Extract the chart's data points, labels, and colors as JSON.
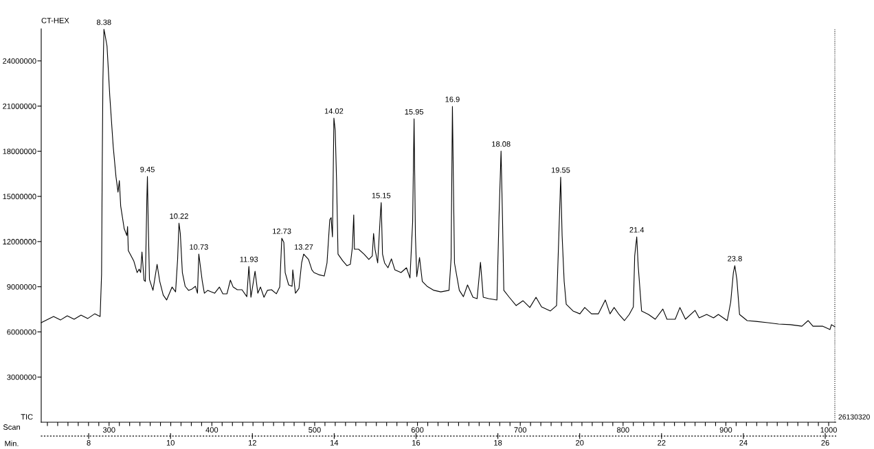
{
  "chart_data": {
    "type": "line",
    "title": "CT-HEX",
    "xlabel": "Scan",
    "x2label": "Min.",
    "ylabel": "TIC",
    "xlim": [
      234,
      1007
    ],
    "x2lim": [
      6.84,
      26.26
    ],
    "ylim": [
      0,
      26130320
    ],
    "xticks": [
      {
        "value": 240,
        "label": null
      },
      {
        "value": 250,
        "label": null
      },
      {
        "value": 260,
        "label": null
      },
      {
        "value": 270,
        "label": null
      },
      {
        "value": 280,
        "label": null
      },
      {
        "value": 290,
        "label": null
      },
      300,
      {
        "value": 310,
        "label": null
      },
      {
        "value": 320,
        "label": null
      },
      {
        "value": 330,
        "label": null
      },
      {
        "value": 340,
        "label": null
      },
      {
        "value": 350,
        "label": null
      },
      {
        "value": 360,
        "label": null
      },
      {
        "value": 370,
        "label": null
      },
      {
        "value": 380,
        "label": null
      },
      {
        "value": 390,
        "label": null
      },
      400,
      {
        "value": 410,
        "label": null
      },
      {
        "value": 420,
        "label": null
      },
      {
        "value": 430,
        "label": null
      },
      {
        "value": 440,
        "label": null
      },
      {
        "value": 450,
        "label": null
      },
      {
        "value": 460,
        "label": null
      },
      {
        "value": 470,
        "label": null
      },
      {
        "value": 480,
        "label": null
      },
      {
        "value": 490,
        "label": null
      },
      500,
      {
        "value": 510,
        "label": null
      },
      {
        "value": 520,
        "label": null
      },
      {
        "value": 530,
        "label": null
      },
      {
        "value": 540,
        "label": null
      },
      {
        "value": 550,
        "label": null
      },
      {
        "value": 560,
        "label": null
      },
      {
        "value": 570,
        "label": null
      },
      {
        "value": 580,
        "label": null
      },
      {
        "value": 590,
        "label": null
      },
      600,
      {
        "value": 610,
        "label": null
      },
      {
        "value": 620,
        "label": null
      },
      {
        "value": 630,
        "label": null
      },
      {
        "value": 640,
        "label": null
      },
      {
        "value": 650,
        "label": null
      },
      {
        "value": 660,
        "label": null
      },
      {
        "value": 670,
        "label": null
      },
      {
        "value": 680,
        "label": null
      },
      {
        "value": 690,
        "label": null
      },
      700,
      {
        "value": 710,
        "label": null
      },
      {
        "value": 720,
        "label": null
      },
      {
        "value": 730,
        "label": null
      },
      {
        "value": 740,
        "label": null
      },
      {
        "value": 750,
        "label": null
      },
      {
        "value": 760,
        "label": null
      },
      {
        "value": 770,
        "label": null
      },
      {
        "value": 780,
        "label": null
      },
      {
        "value": 790,
        "label": null
      },
      800,
      {
        "value": 810,
        "label": null
      },
      {
        "value": 820,
        "label": null
      },
      {
        "value": 830,
        "label": null
      },
      {
        "value": 840,
        "label": null
      },
      {
        "value": 850,
        "label": null
      },
      {
        "value": 860,
        "label": null
      },
      {
        "value": 870,
        "label": null
      },
      {
        "value": 880,
        "label": null
      },
      {
        "value": 890,
        "label": null
      },
      900,
      {
        "value": 910,
        "label": null
      },
      {
        "value": 920,
        "label": null
      },
      {
        "value": 930,
        "label": null
      },
      {
        "value": 940,
        "label": null
      },
      {
        "value": 950,
        "label": null
      },
      {
        "value": 960,
        "label": null
      },
      {
        "value": 970,
        "label": null
      },
      {
        "value": 980,
        "label": null
      },
      {
        "value": 990,
        "label": null
      },
      1000
    ],
    "x2ticks": [
      8,
      10,
      12,
      14,
      16,
      18,
      20,
      22,
      24,
      26
    ],
    "yticks": [
      3000000,
      6000000,
      9000000,
      12000000,
      15000000,
      18000000,
      21000000,
      24000000
    ],
    "series": [
      {
        "color": "#000000",
        "line_style": "solid",
        "x": [
          234.0,
          239.3,
          246.0,
          252.7,
          259.3,
          266.0,
          272.7,
          279.3,
          286.0,
          291.3,
          292.7,
          293.3,
          294.0,
          295.0,
          296.0,
          298.0,
          300.7,
          304.0,
          306.7,
          308.7,
          310.0,
          311.3,
          314.7,
          317.3,
          318.0,
          318.7,
          324.0,
          327.3,
          329.3,
          330.7,
          332.0,
          334.0,
          335.3,
          336.7,
          337.3,
          338.0,
          339.3,
          342.7,
          346.7,
          349.3,
          352.7,
          356.0,
          361.3,
          364.7,
          366.7,
          368.0,
          369.3,
          371.3,
          374.0,
          377.3,
          380.7,
          384.0,
          386.0,
          387.3,
          390.7,
          392.7,
          396.0,
          399.3,
          402.7,
          407.3,
          410.7,
          414.7,
          418.0,
          420.7,
          424.7,
          429.3,
          434.0,
          436.0,
          438.0,
          442.0,
          444.7,
          447.3,
          450.7,
          454.0,
          458.0,
          462.7,
          466.0,
          468.0,
          470.0,
          471.3,
          474.7,
          478.0,
          478.7,
          481.3,
          484.7,
          487.3,
          489.3,
          494.0,
          497.3,
          499.3,
          504.0,
          509.3,
          512.0,
          514.7,
          516.0,
          517.3,
          518.7,
          520.0,
          521.3,
          522.7,
          527.3,
          531.3,
          534.7,
          536.7,
          538.0,
          538.7,
          542.7,
          548.0,
          552.7,
          556.0,
          557.3,
          558.7,
          561.3,
          564.0,
          564.7,
          566.0,
          568.0,
          571.3,
          574.7,
          578.0,
          584.0,
          589.3,
          592.7,
          595.3,
          596.7,
          598.0,
          599.3,
          602.0,
          604.7,
          609.3,
          616.0,
          622.7,
          630.7,
          632.7,
          634.0,
          636.0,
          640.7,
          644.7,
          648.7,
          654.0,
          658.0,
          661.3,
          664.0,
          669.3,
          677.3,
          679.3,
          681.3,
          682.7,
          684.0,
          689.3,
          696.0,
          702.7,
          709.3,
          715.3,
          720.7,
          729.3,
          735.3,
          737.3,
          739.3,
          740.7,
          742.7,
          744.7,
          751.3,
          758.0,
          762.7,
          769.3,
          776.0,
          782.7,
          787.3,
          791.3,
          796.0,
          801.3,
          806.0,
          810.0,
          811.3,
          813.3,
          814.7,
          818.0,
          824.7,
          831.3,
          838.7,
          842.7,
          850.7,
          855.3,
          860.7,
          870.0,
          874.0,
          881.3,
          888.0,
          892.7,
          901.3,
          904.7,
          907.3,
          908.7,
          910.7,
          913.3,
          920.7,
          929.3,
          940.7,
          951.3,
          962.7,
          974.0,
          980.0,
          984.7,
          994.0,
          1001.3,
          1002.7,
          1006.0
        ],
        "values": [
          6610000,
          6790000,
          7020000,
          6790000,
          7070000,
          6840000,
          7110000,
          6890000,
          7200000,
          7020000,
          9800000,
          16640000,
          22710000,
          26100000,
          25760000,
          24990000,
          21660000,
          18330000,
          16320000,
          15280000,
          16050000,
          14360000,
          12860000,
          12400000,
          13000000,
          11400000,
          10720000,
          9940000,
          10170000,
          9940000,
          11310000,
          9440000,
          9350000,
          14680000,
          16320000,
          13540000,
          9480000,
          8760000,
          10490000,
          9350000,
          8440000,
          8120000,
          8980000,
          8660000,
          10850000,
          13220000,
          12540000,
          9940000,
          9030000,
          8760000,
          8850000,
          9030000,
          8570000,
          11170000,
          9350000,
          8570000,
          8760000,
          8660000,
          8570000,
          8980000,
          8530000,
          8530000,
          9440000,
          8980000,
          8800000,
          8800000,
          8340000,
          10350000,
          8300000,
          10030000,
          8570000,
          8980000,
          8300000,
          8760000,
          8800000,
          8530000,
          8980000,
          12220000,
          11950000,
          9940000,
          9120000,
          9030000,
          10120000,
          8570000,
          8890000,
          10580000,
          11170000,
          10810000,
          10120000,
          9940000,
          9800000,
          9710000,
          10580000,
          13450000,
          13590000,
          12310000,
          20200000,
          19380000,
          16050000,
          11170000,
          10720000,
          10400000,
          10490000,
          11630000,
          13770000,
          11490000,
          11490000,
          11170000,
          10810000,
          11040000,
          12540000,
          11490000,
          10580000,
          13910000,
          14590000,
          11170000,
          10580000,
          10260000,
          10850000,
          10120000,
          9940000,
          10260000,
          9580000,
          13320000,
          20150000,
          12400000,
          9670000,
          10940000,
          9350000,
          9030000,
          8760000,
          8660000,
          8760000,
          10850000,
          20980000,
          10580000,
          8760000,
          8340000,
          9120000,
          8300000,
          8210000,
          10620000,
          8300000,
          8210000,
          8120000,
          13590000,
          18010000,
          13590000,
          8760000,
          8300000,
          7750000,
          8070000,
          7620000,
          8300000,
          7660000,
          7390000,
          7750000,
          11950000,
          16280000,
          12400000,
          9350000,
          7840000,
          7390000,
          7200000,
          7620000,
          7200000,
          7200000,
          8120000,
          7200000,
          7620000,
          7160000,
          6750000,
          7160000,
          7660000,
          11040000,
          12310000,
          10400000,
          7390000,
          7160000,
          6840000,
          7520000,
          6840000,
          6840000,
          7620000,
          6840000,
          7430000,
          6930000,
          7160000,
          6930000,
          7160000,
          6750000,
          7980000,
          9940000,
          10400000,
          9480000,
          7160000,
          6750000,
          6700000,
          6610000,
          6520000,
          6480000,
          6380000,
          6750000,
          6380000,
          6380000,
          6160000,
          6480000,
          6340000
        ]
      }
    ],
    "annotations": [
      {
        "text": "8.38",
        "x": 295.0,
        "y": 26100000
      },
      {
        "text": "9.45",
        "x": 337.3,
        "y": 16320000
      },
      {
        "text": "10.22",
        "x": 368.0,
        "y": 13220000
      },
      {
        "text": "10.73",
        "x": 387.3,
        "y": 11170000
      },
      {
        "text": "11.93",
        "x": 436.0,
        "y": 10350000
      },
      {
        "text": "12.73",
        "x": 468.0,
        "y": 12220000
      },
      {
        "text": "13.27",
        "x": 489.3,
        "y": 11170000
      },
      {
        "text": "14.02",
        "x": 518.7,
        "y": 20200000
      },
      {
        "text": "15.15",
        "x": 564.7,
        "y": 14590000
      },
      {
        "text": "15.95",
        "x": 596.7,
        "y": 20150000
      },
      {
        "text": "16.9",
        "x": 634.0,
        "y": 20980000
      },
      {
        "text": "18.08",
        "x": 681.3,
        "y": 18010000
      },
      {
        "text": "19.55",
        "x": 739.3,
        "y": 16280000
      },
      {
        "text": "21.4",
        "x": 813.3,
        "y": 12310000
      },
      {
        "text": "23.8",
        "x": 908.7,
        "y": 10400000
      },
      "26130320"
    ],
    "ref_lines": [
      {
        "axis": "x",
        "value": 1006.0,
        "line_style": "dotted",
        "color": "#000000"
      }
    ]
  }
}
